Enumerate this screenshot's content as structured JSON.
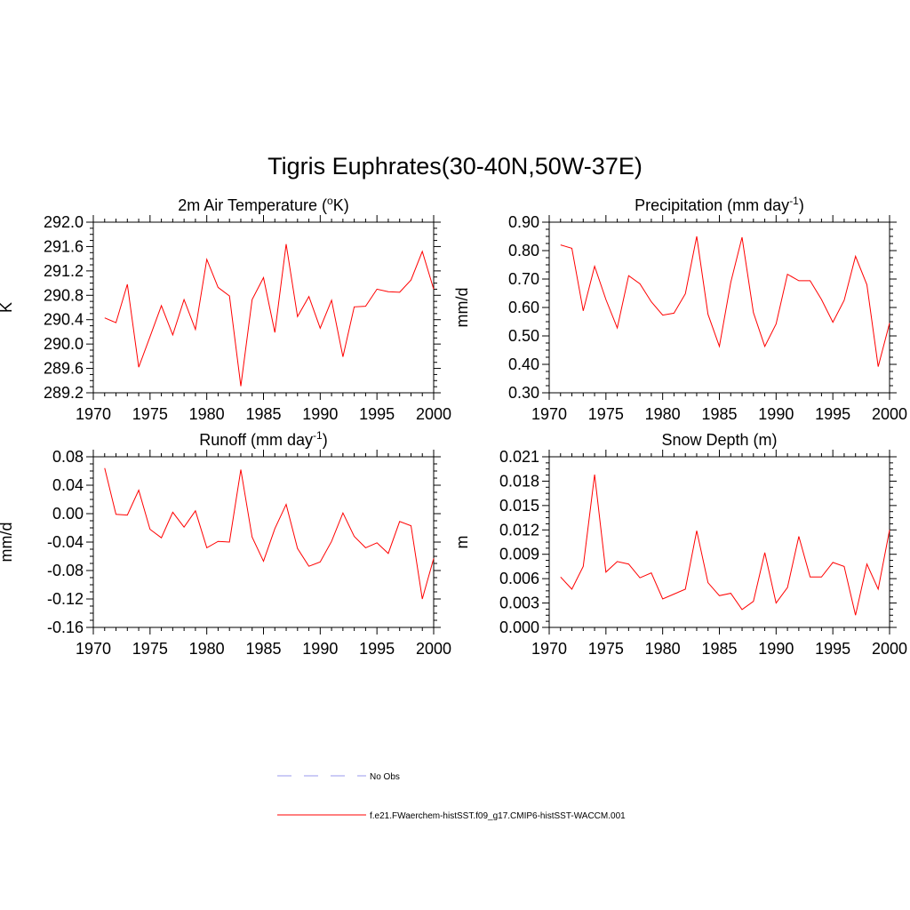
{
  "figure": {
    "title": "Tigris Euphrates(30-40N,50W-37E)"
  },
  "legend": {
    "entries": [
      {
        "label": "No Obs",
        "color": "#9999ee",
        "style": "dashed"
      },
      {
        "label": "f.e21.FWaerchem-histSST.f09_g17.CMIP6-histSST-WACCM.001",
        "color": "#ff0000",
        "style": "solid"
      }
    ]
  },
  "chart_data": [
    {
      "id": "temperature",
      "type": "line",
      "title": "2m Air Temperature (",
      "title_sup": "o",
      "title_tail": "K)",
      "ylabel": "K",
      "xlabel": "",
      "xlim": [
        1970,
        2000
      ],
      "ylim": [
        289.2,
        292.0
      ],
      "xticks": [
        1970,
        1975,
        1980,
        1985,
        1990,
        1995,
        2000
      ],
      "yticks": [
        289.2,
        289.6,
        290.0,
        290.4,
        290.8,
        291.2,
        291.6,
        292.0
      ],
      "ytick_labels": [
        "289.2",
        "289.6",
        "290.0",
        "290.4",
        "290.8",
        "291.2",
        "291.6",
        "292.0"
      ],
      "color": "#ff0000",
      "series": [
        {
          "x": [
            1971,
            1972,
            1973,
            1974,
            1975,
            1976,
            1977,
            1978,
            1979,
            1980,
            1981,
            1982,
            1983,
            1984,
            1985,
            1986,
            1987,
            1988,
            1989,
            1990,
            1991,
            1992,
            1993,
            1994,
            1995,
            1996,
            1997,
            1998,
            1999,
            2000
          ],
          "values": [
            290.43,
            290.35,
            290.98,
            289.62,
            290.12,
            290.63,
            290.15,
            290.73,
            290.24,
            291.39,
            290.93,
            290.79,
            289.31,
            290.73,
            291.09,
            290.19,
            291.64,
            290.45,
            290.78,
            290.26,
            290.72,
            289.79,
            290.61,
            290.62,
            290.9,
            290.86,
            290.85,
            291.05,
            291.52,
            290.9
          ]
        }
      ]
    },
    {
      "id": "precipitation",
      "type": "line",
      "title": "Precipitation (mm day",
      "title_sup": "-1",
      "title_tail": ")",
      "ylabel": "mm/d",
      "xlabel": "",
      "xlim": [
        1970,
        2000
      ],
      "ylim": [
        0.3,
        0.9
      ],
      "xticks": [
        1970,
        1975,
        1980,
        1985,
        1990,
        1995,
        2000
      ],
      "yticks": [
        0.3,
        0.4,
        0.5,
        0.6,
        0.7,
        0.8,
        0.9
      ],
      "ytick_labels": [
        "0.30",
        "0.40",
        "0.50",
        "0.60",
        "0.70",
        "0.80",
        "0.90"
      ],
      "color": "#ff0000",
      "series": [
        {
          "x": [
            1971,
            1972,
            1973,
            1974,
            1975,
            1976,
            1977,
            1978,
            1979,
            1980,
            1981,
            1982,
            1983,
            1984,
            1985,
            1986,
            1987,
            1988,
            1989,
            1990,
            1991,
            1992,
            1993,
            1994,
            1995,
            1996,
            1997,
            1998,
            1999,
            2000
          ],
          "values": [
            0.82,
            0.808,
            0.588,
            0.745,
            0.628,
            0.528,
            0.712,
            0.683,
            0.62,
            0.573,
            0.58,
            0.648,
            0.85,
            0.576,
            0.463,
            0.688,
            0.847,
            0.582,
            0.463,
            0.542,
            0.717,
            0.694,
            0.694,
            0.628,
            0.548,
            0.625,
            0.78,
            0.68,
            0.392,
            0.545
          ]
        }
      ]
    },
    {
      "id": "runoff",
      "type": "line",
      "title": "Runoff (mm day",
      "title_sup": "-1",
      "title_tail": ")",
      "ylabel": "mm/d",
      "xlabel": "",
      "xlim": [
        1970,
        2000
      ],
      "ylim": [
        -0.16,
        0.08
      ],
      "xticks": [
        1970,
        1975,
        1980,
        1985,
        1990,
        1995,
        2000
      ],
      "yticks": [
        -0.16,
        -0.12,
        -0.08,
        -0.04,
        0.0,
        0.04,
        0.08
      ],
      "ytick_labels": [
        "-0.16",
        "-0.12",
        "-0.08",
        "-0.04",
        "0.00",
        "0.04",
        "0.08"
      ],
      "color": "#ff0000",
      "series": [
        {
          "x": [
            1971,
            1972,
            1973,
            1974,
            1975,
            1976,
            1977,
            1978,
            1979,
            1980,
            1981,
            1982,
            1983,
            1984,
            1985,
            1986,
            1987,
            1988,
            1989,
            1990,
            1991,
            1992,
            1993,
            1994,
            1995,
            1996,
            1997,
            1998,
            1999,
            2000
          ],
          "values": [
            0.064,
            -0.001,
            -0.002,
            0.033,
            -0.022,
            -0.034,
            0.002,
            -0.019,
            0.004,
            -0.048,
            -0.039,
            -0.04,
            0.062,
            -0.033,
            -0.067,
            -0.021,
            0.013,
            -0.049,
            -0.074,
            -0.068,
            -0.039,
            0.001,
            -0.032,
            -0.048,
            -0.041,
            -0.056,
            -0.011,
            -0.017,
            -0.12,
            -0.063
          ]
        }
      ]
    },
    {
      "id": "snow_depth",
      "type": "line",
      "title": "Snow Depth (m)",
      "title_sup": "",
      "title_tail": "",
      "ylabel": "m",
      "xlabel": "",
      "xlim": [
        1970,
        2000
      ],
      "ylim": [
        0.0,
        0.021
      ],
      "xticks": [
        1970,
        1975,
        1980,
        1985,
        1990,
        1995,
        2000
      ],
      "yticks": [
        0.0,
        0.003,
        0.006,
        0.009,
        0.012,
        0.015,
        0.018,
        0.021
      ],
      "ytick_labels": [
        "0.000",
        "0.003",
        "0.006",
        "0.009",
        "0.012",
        "0.015",
        "0.018",
        "0.021"
      ],
      "color": "#ff0000",
      "series": [
        {
          "x": [
            1971,
            1972,
            1973,
            1974,
            1975,
            1976,
            1977,
            1978,
            1979,
            1980,
            1981,
            1982,
            1983,
            1984,
            1985,
            1986,
            1987,
            1988,
            1989,
            1990,
            1991,
            1992,
            1993,
            1994,
            1995,
            1996,
            1997,
            1998,
            1999,
            2000
          ],
          "values": [
            0.0062,
            0.0047,
            0.0075,
            0.0188,
            0.0068,
            0.0081,
            0.0078,
            0.0061,
            0.0067,
            0.0035,
            0.0041,
            0.0047,
            0.0119,
            0.0055,
            0.0039,
            0.0042,
            0.0022,
            0.0032,
            0.0092,
            0.003,
            0.0049,
            0.0112,
            0.0062,
            0.0062,
            0.008,
            0.0075,
            0.0015,
            0.0078,
            0.0047,
            0.012
          ]
        }
      ]
    }
  ]
}
